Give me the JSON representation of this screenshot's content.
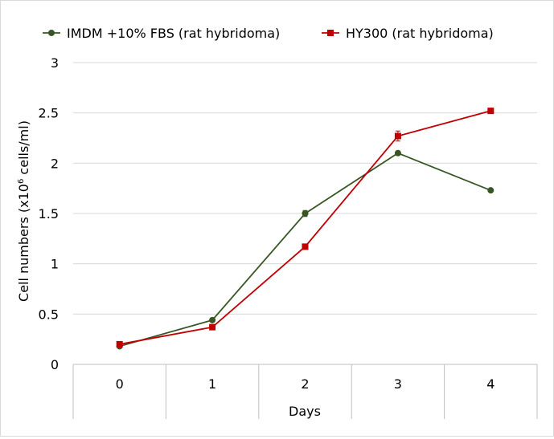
{
  "chart_data": {
    "type": "line",
    "title": "",
    "xlabel": "Days",
    "ylabel_main": "Cell numbers (x10",
    "ylabel_sup": "6",
    "ylabel_tail": " cells/ml)",
    "x": [
      0,
      1,
      2,
      3,
      4
    ],
    "x_tick_labels": [
      "0",
      "1",
      "2",
      "3",
      "4"
    ],
    "ylim": [
      0,
      3
    ],
    "y_ticks": [
      0,
      0.5,
      1,
      1.5,
      2,
      2.5,
      3
    ],
    "y_tick_labels": [
      "0",
      "0.5",
      "1",
      "1.5",
      "2",
      "2.5",
      "3"
    ],
    "grid": "horizontal",
    "legend_position": "top",
    "series": [
      {
        "name": "IMDM +10% FBS (rat hybridoma)",
        "color": "#375623",
        "marker": "circle",
        "values": [
          0.18,
          0.44,
          1.5,
          2.1,
          1.73
        ],
        "errors": [
          0.01,
          0.01,
          0.03,
          0.02,
          0.01
        ]
      },
      {
        "name": "HY300 (rat hybridoma)",
        "color": "#c00000",
        "marker": "square",
        "values": [
          0.2,
          0.37,
          1.17,
          2.27,
          2.52
        ],
        "errors": [
          0.01,
          0.01,
          0.02,
          0.05,
          0.01
        ]
      }
    ]
  }
}
